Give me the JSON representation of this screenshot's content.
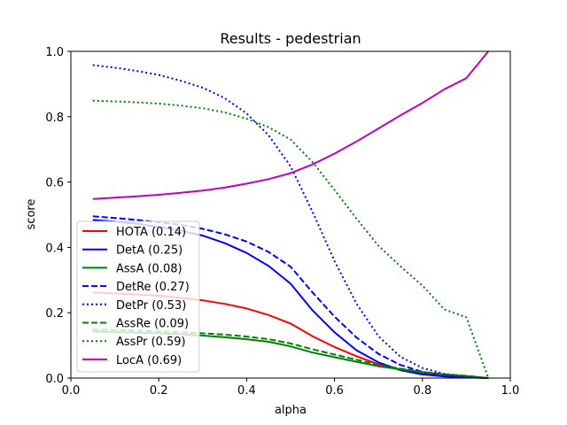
{
  "chart_data": {
    "type": "line",
    "title": "Results - pedestrian",
    "xlabel": "alpha",
    "ylabel": "score",
    "xlim": [
      0.0,
      1.0
    ],
    "ylim": [
      0.0,
      1.0
    ],
    "xticks": [
      "0.0",
      "0.2",
      "0.4",
      "0.6",
      "0.8",
      "1.0"
    ],
    "yticks": [
      "0.0",
      "0.2",
      "0.4",
      "0.6",
      "0.8",
      "1.0"
    ],
    "grid": false,
    "legend_position": "lower-left",
    "x": [
      0.05,
      0.1,
      0.15,
      0.2,
      0.25,
      0.3,
      0.35,
      0.4,
      0.45,
      0.5,
      0.55,
      0.6,
      0.65,
      0.7,
      0.75,
      0.8,
      0.85,
      0.9,
      0.95
    ],
    "series": [
      {
        "name": "HOTA (0.14)",
        "color": "#ff0000",
        "style": "solid",
        "values": [
          0.262,
          0.259,
          0.256,
          0.252,
          0.246,
          0.238,
          0.227,
          0.213,
          0.193,
          0.167,
          0.128,
          0.095,
          0.067,
          0.042,
          0.025,
          0.013,
          0.007,
          0.003,
          0.0
        ]
      },
      {
        "name": "DetA (0.25)",
        "color": "#0000ff",
        "style": "solid",
        "values": [
          0.484,
          0.479,
          0.472,
          0.463,
          0.451,
          0.436,
          0.413,
          0.383,
          0.343,
          0.289,
          0.207,
          0.14,
          0.085,
          0.048,
          0.024,
          0.011,
          0.005,
          0.002,
          0.0
        ]
      },
      {
        "name": "AssA (0.08)",
        "color": "#008000",
        "style": "solid",
        "values": [
          0.143,
          0.141,
          0.139,
          0.137,
          0.134,
          0.13,
          0.125,
          0.119,
          0.111,
          0.097,
          0.078,
          0.064,
          0.05,
          0.036,
          0.027,
          0.018,
          0.011,
          0.006,
          0.0
        ]
      },
      {
        "name": "DetRe (0.27)",
        "color": "#0000ff",
        "style": "dashed",
        "values": [
          0.495,
          0.49,
          0.484,
          0.477,
          0.469,
          0.457,
          0.44,
          0.418,
          0.386,
          0.341,
          0.262,
          0.188,
          0.124,
          0.074,
          0.04,
          0.019,
          0.008,
          0.003,
          0.0
        ]
      },
      {
        "name": "DetPr (0.53)",
        "color": "#0000ff",
        "style": "dotted",
        "values": [
          0.958,
          0.95,
          0.94,
          0.928,
          0.91,
          0.889,
          0.857,
          0.81,
          0.743,
          0.648,
          0.509,
          0.358,
          0.228,
          0.128,
          0.065,
          0.031,
          0.013,
          0.005,
          0.0
        ]
      },
      {
        "name": "AssRe (0.09)",
        "color": "#008000",
        "style": "dashed",
        "values": [
          0.149,
          0.147,
          0.145,
          0.143,
          0.14,
          0.137,
          0.133,
          0.127,
          0.119,
          0.106,
          0.088,
          0.072,
          0.056,
          0.04,
          0.029,
          0.019,
          0.012,
          0.007,
          0.0
        ]
      },
      {
        "name": "AssPr (0.59)",
        "color": "#008000",
        "style": "dotted",
        "values": [
          0.849,
          0.847,
          0.844,
          0.84,
          0.834,
          0.826,
          0.813,
          0.794,
          0.768,
          0.73,
          0.661,
          0.576,
          0.488,
          0.405,
          0.342,
          0.283,
          0.21,
          0.186,
          0.0
        ]
      },
      {
        "name": "LocA (0.69)",
        "color": "#bf00bf",
        "style": "solid",
        "values": [
          0.548,
          0.552,
          0.556,
          0.561,
          0.567,
          0.574,
          0.583,
          0.595,
          0.609,
          0.627,
          0.654,
          0.687,
          0.724,
          0.764,
          0.804,
          0.842,
          0.884,
          0.918,
          1.0
        ]
      }
    ]
  }
}
